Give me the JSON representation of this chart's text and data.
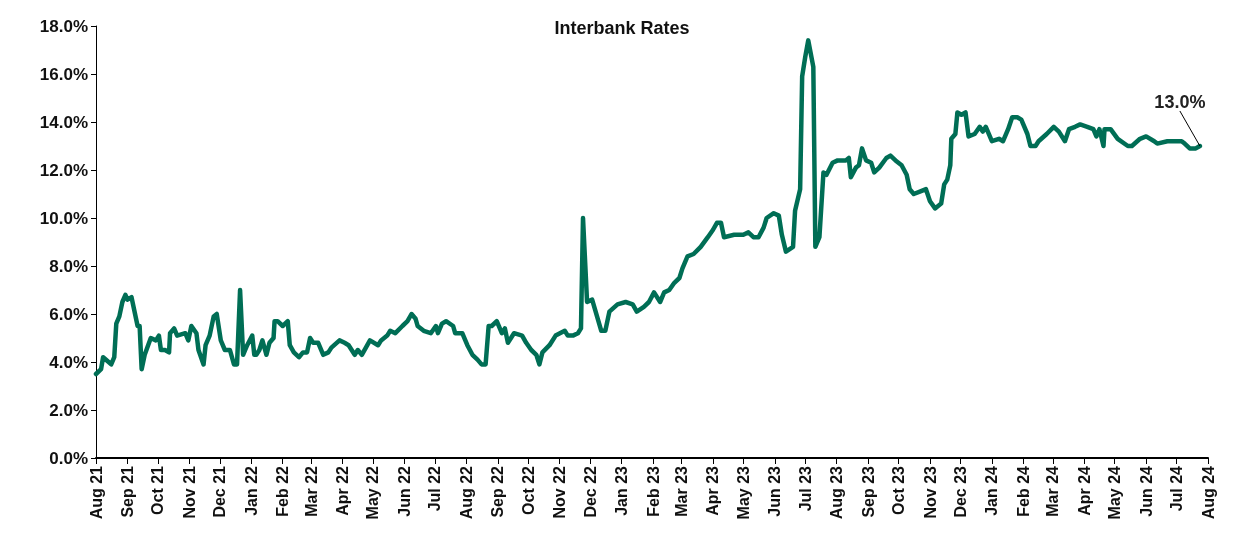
{
  "chart_data": {
    "type": "line",
    "title": "Interbank Rates",
    "x": [
      "2021-08-01",
      "2021-08-06",
      "2021-08-08",
      "2021-08-12",
      "2021-08-16",
      "2021-08-19",
      "2021-08-21",
      "2021-08-24",
      "2021-08-27",
      "2021-08-30",
      "2021-09-01",
      "2021-09-05",
      "2021-09-11",
      "2021-09-13",
      "2021-09-15",
      "2021-09-18",
      "2021-09-24",
      "2021-09-29",
      "2021-10-02",
      "2021-10-04",
      "2021-10-08",
      "2021-10-12",
      "2021-10-13",
      "2021-10-17",
      "2021-10-20",
      "2021-10-28",
      "2021-10-31",
      "2021-11-03",
      "2021-11-08",
      "2021-11-10",
      "2021-11-15",
      "2021-11-17",
      "2021-11-21",
      "2021-11-25",
      "2021-11-28",
      "2021-12-02",
      "2021-12-06",
      "2021-12-11",
      "2021-12-15",
      "2021-12-18",
      "2021-12-21",
      "2021-12-24",
      "2021-12-28",
      "2022-01-02",
      "2022-01-04",
      "2022-01-06",
      "2022-01-09",
      "2022-01-12",
      "2022-01-16",
      "2022-01-19",
      "2022-01-23",
      "2022-01-24",
      "2022-01-27",
      "2022-02-01",
      "2022-02-06",
      "2022-02-08",
      "2022-02-12",
      "2022-02-17",
      "2022-02-21",
      "2022-02-25",
      "2022-02-28",
      "2022-03-03",
      "2022-03-08",
      "2022-03-13",
      "2022-03-18",
      "2022-03-21",
      "2022-03-29",
      "2022-04-03",
      "2022-04-07",
      "2022-04-13",
      "2022-04-16",
      "2022-04-20",
      "2022-04-28",
      "2022-05-06",
      "2022-05-09",
      "2022-05-15",
      "2022-05-18",
      "2022-05-23",
      "2022-05-30",
      "2022-06-04",
      "2022-06-08",
      "2022-06-12",
      "2022-06-14",
      "2022-06-20",
      "2022-06-27",
      "2022-07-02",
      "2022-07-04",
      "2022-07-08",
      "2022-07-12",
      "2022-07-19",
      "2022-07-21",
      "2022-07-28",
      "2022-08-02",
      "2022-08-07",
      "2022-08-12",
      "2022-08-16",
      "2022-08-20",
      "2022-08-23",
      "2022-08-26",
      "2022-08-31",
      "2022-09-05",
      "2022-09-08",
      "2022-09-11",
      "2022-09-17",
      "2022-09-25",
      "2022-09-29",
      "2022-10-04",
      "2022-10-09",
      "2022-10-12",
      "2022-10-15",
      "2022-10-22",
      "2022-10-28",
      "2022-11-06",
      "2022-11-09",
      "2022-11-14",
      "2022-11-19",
      "2022-11-22",
      "2022-11-24",
      "2022-11-28",
      "2022-12-03",
      "2022-12-12",
      "2022-12-16",
      "2022-12-20",
      "2022-12-28",
      "2023-01-05",
      "2023-01-12",
      "2023-01-16",
      "2023-01-23",
      "2023-01-28",
      "2023-02-02",
      "2023-02-08",
      "2023-02-12",
      "2023-02-17",
      "2023-02-22",
      "2023-02-27",
      "2023-03-02",
      "2023-03-07",
      "2023-03-13",
      "2023-03-20",
      "2023-03-27",
      "2023-04-01",
      "2023-04-05",
      "2023-04-09",
      "2023-04-12",
      "2023-04-22",
      "2023-05-01",
      "2023-05-06",
      "2023-05-11",
      "2023-05-16",
      "2023-05-21",
      "2023-05-24",
      "2023-05-31",
      "2023-06-05",
      "2023-06-08",
      "2023-06-12",
      "2023-06-19",
      "2023-06-21",
      "2023-06-26",
      "2023-06-28",
      "2023-07-01",
      "2023-07-04",
      "2023-07-09",
      "2023-07-11",
      "2023-07-15",
      "2023-07-19",
      "2023-07-22",
      "2023-07-28",
      "2023-08-02",
      "2023-08-10",
      "2023-08-13",
      "2023-08-15",
      "2023-08-20",
      "2023-08-23",
      "2023-08-26",
      "2023-08-30",
      "2023-09-04",
      "2023-09-07",
      "2023-09-12",
      "2023-09-19",
      "2023-09-23",
      "2023-09-28",
      "2023-10-04",
      "2023-10-09",
      "2023-10-12",
      "2023-10-16",
      "2023-10-22",
      "2023-10-28",
      "2023-11-01",
      "2023-11-06",
      "2023-11-12",
      "2023-11-15",
      "2023-11-18",
      "2023-11-21",
      "2023-11-22",
      "2023-11-26",
      "2023-11-28",
      "2023-12-02",
      "2023-12-06",
      "2023-12-09",
      "2023-12-15",
      "2023-12-20",
      "2023-12-23",
      "2023-12-26",
      "2024-01-01",
      "2024-01-08",
      "2024-01-12",
      "2024-01-17",
      "2024-01-21",
      "2024-01-26",
      "2024-01-30",
      "2024-02-05",
      "2024-02-08",
      "2024-02-13",
      "2024-02-16",
      "2024-02-24",
      "2024-03-02",
      "2024-03-07",
      "2024-03-13",
      "2024-03-17",
      "2024-03-23",
      "2024-03-28",
      "2024-04-04",
      "2024-04-10",
      "2024-04-13",
      "2024-04-16",
      "2024-04-20",
      "2024-04-21",
      "2024-04-27",
      "2024-05-04",
      "2024-05-14",
      "2024-05-18",
      "2024-05-26",
      "2024-06-01",
      "2024-06-09",
      "2024-06-12",
      "2024-06-22",
      "2024-07-06",
      "2024-07-09",
      "2024-07-14",
      "2024-07-20",
      "2024-07-24"
    ],
    "series": [
      {
        "color": "#006e55",
        "values": [
          3.5,
          3.7,
          4.2,
          4.05,
          3.9,
          4.2,
          5.6,
          5.9,
          6.5,
          6.8,
          6.6,
          6.7,
          5.5,
          5.5,
          3.7,
          4.3,
          5.0,
          4.9,
          5.1,
          4.5,
          4.5,
          4.4,
          5.2,
          5.4,
          5.1,
          5.2,
          4.9,
          5.5,
          5.2,
          4.5,
          3.9,
          4.7,
          5.1,
          5.9,
          6.0,
          4.9,
          4.5,
          4.5,
          3.9,
          3.9,
          7.0,
          4.3,
          4.7,
          5.1,
          4.3,
          4.3,
          4.5,
          4.9,
          4.3,
          4.8,
          5.0,
          5.7,
          5.7,
          5.5,
          5.7,
          4.7,
          4.4,
          4.2,
          4.4,
          4.4,
          5.0,
          4.8,
          4.8,
          4.3,
          4.4,
          4.6,
          4.9,
          4.8,
          4.7,
          4.3,
          4.5,
          4.3,
          4.9,
          4.7,
          4.9,
          5.1,
          5.3,
          5.2,
          5.5,
          5.7,
          6.0,
          5.8,
          5.5,
          5.3,
          5.2,
          5.5,
          5.2,
          5.6,
          5.7,
          5.5,
          5.2,
          5.2,
          4.7,
          4.3,
          4.1,
          3.9,
          3.9,
          5.5,
          5.5,
          5.7,
          5.2,
          5.4,
          4.8,
          5.2,
          5.1,
          4.8,
          4.5,
          4.3,
          3.9,
          4.4,
          4.7,
          5.1,
          5.3,
          5.1,
          5.1,
          5.2,
          5.4,
          10.0,
          6.5,
          6.6,
          5.3,
          5.3,
          6.1,
          6.4,
          6.5,
          6.4,
          6.1,
          6.3,
          6.5,
          6.9,
          6.5,
          6.9,
          7.0,
          7.3,
          7.5,
          7.9,
          8.4,
          8.5,
          8.8,
          9.2,
          9.5,
          9.8,
          9.8,
          9.2,
          9.3,
          9.3,
          9.4,
          9.2,
          9.2,
          9.6,
          10.0,
          10.2,
          10.1,
          9.3,
          8.6,
          8.8,
          10.3,
          11.2,
          15.9,
          16.7,
          17.4,
          16.3,
          8.8,
          9.2,
          11.9,
          11.8,
          12.3,
          12.4,
          12.4,
          12.5,
          11.7,
          12.1,
          12.2,
          12.9,
          12.4,
          12.3,
          11.9,
          12.1,
          12.5,
          12.6,
          12.4,
          12.2,
          11.8,
          11.2,
          11.0,
          11.1,
          11.2,
          10.7,
          10.4,
          10.6,
          11.4,
          11.6,
          12.2,
          13.3,
          13.5,
          14.4,
          14.3,
          14.4,
          13.4,
          13.5,
          13.8,
          13.6,
          13.8,
          13.2,
          13.3,
          13.2,
          13.7,
          14.2,
          14.2,
          14.1,
          13.5,
          13.0,
          13.0,
          13.2,
          13.5,
          13.8,
          13.6,
          13.2,
          13.7,
          13.8,
          13.9,
          13.8,
          13.7,
          13.4,
          13.7,
          13.0,
          13.7,
          13.7,
          13.3,
          13.0,
          13.0,
          13.3,
          13.4,
          13.2,
          13.1,
          13.2,
          13.2,
          13.1,
          12.9,
          12.9,
          13.0
        ]
      }
    ],
    "annotations": [
      {
        "text": "13.0%",
        "x": "2024-07-24",
        "y": 13.0
      }
    ],
    "xlim": [
      "2021-08-01",
      "2024-08-01"
    ],
    "xticks": [
      {
        "value": "2021-08-01",
        "label": "Aug 21"
      },
      {
        "value": "2021-09-01",
        "label": "Sep 21"
      },
      {
        "value": "2021-10-01",
        "label": "Oct 21"
      },
      {
        "value": "2021-11-01",
        "label": "Nov 21"
      },
      {
        "value": "2021-12-01",
        "label": "Dec 21"
      },
      {
        "value": "2022-01-01",
        "label": "Jan 22"
      },
      {
        "value": "2022-02-01",
        "label": "Feb 22"
      },
      {
        "value": "2022-03-01",
        "label": "Mar 22"
      },
      {
        "value": "2022-04-01",
        "label": "Apr 22"
      },
      {
        "value": "2022-05-01",
        "label": "May 22"
      },
      {
        "value": "2022-06-01",
        "label": "Jun 22"
      },
      {
        "value": "2022-07-01",
        "label": "Jul 22"
      },
      {
        "value": "2022-08-01",
        "label": "Aug 22"
      },
      {
        "value": "2022-09-01",
        "label": "Sep 22"
      },
      {
        "value": "2022-10-01",
        "label": "Oct 22"
      },
      {
        "value": "2022-11-01",
        "label": "Nov 22"
      },
      {
        "value": "2022-12-01",
        "label": "Dec 22"
      },
      {
        "value": "2023-01-01",
        "label": "Jan 23"
      },
      {
        "value": "2023-02-01",
        "label": "Feb 23"
      },
      {
        "value": "2023-03-01",
        "label": "Mar 23"
      },
      {
        "value": "2023-04-01",
        "label": "Apr 23"
      },
      {
        "value": "2023-05-01",
        "label": "May 23"
      },
      {
        "value": "2023-06-01",
        "label": "Jun 23"
      },
      {
        "value": "2023-07-01",
        "label": "Jul 23"
      },
      {
        "value": "2023-08-01",
        "label": "Aug 23"
      },
      {
        "value": "2023-09-01",
        "label": "Sep 23"
      },
      {
        "value": "2023-10-01",
        "label": "Oct 23"
      },
      {
        "value": "2023-11-01",
        "label": "Nov 23"
      },
      {
        "value": "2023-12-01",
        "label": "Dec 23"
      },
      {
        "value": "2024-01-01",
        "label": "Jan 24"
      },
      {
        "value": "2024-02-01",
        "label": "Feb 24"
      },
      {
        "value": "2024-03-01",
        "label": "Mar 24"
      },
      {
        "value": "2024-04-01",
        "label": "Apr 24"
      },
      {
        "value": "2024-05-01",
        "label": "May 24"
      },
      {
        "value": "2024-06-01",
        "label": "Jun 24"
      },
      {
        "value": "2024-07-01",
        "label": "Jul 24"
      },
      {
        "value": "2024-08-01",
        "label": "Aug 24"
      }
    ],
    "ylim": [
      0,
      18
    ],
    "yticks": [
      {
        "value": 0,
        "label": "0.0%"
      },
      {
        "value": 2,
        "label": "2.0%"
      },
      {
        "value": 4,
        "label": "4.0%"
      },
      {
        "value": 6,
        "label": "6.0%"
      },
      {
        "value": 8,
        "label": "8.0%"
      },
      {
        "value": 10,
        "label": "10.0%"
      },
      {
        "value": 12,
        "label": "12.0%"
      },
      {
        "value": 14,
        "label": "14.0%"
      },
      {
        "value": 16,
        "label": "16.0%"
      },
      {
        "value": 18,
        "label": "18.0%"
      }
    ],
    "grid": false,
    "marker": "none",
    "line_style": "solid"
  }
}
